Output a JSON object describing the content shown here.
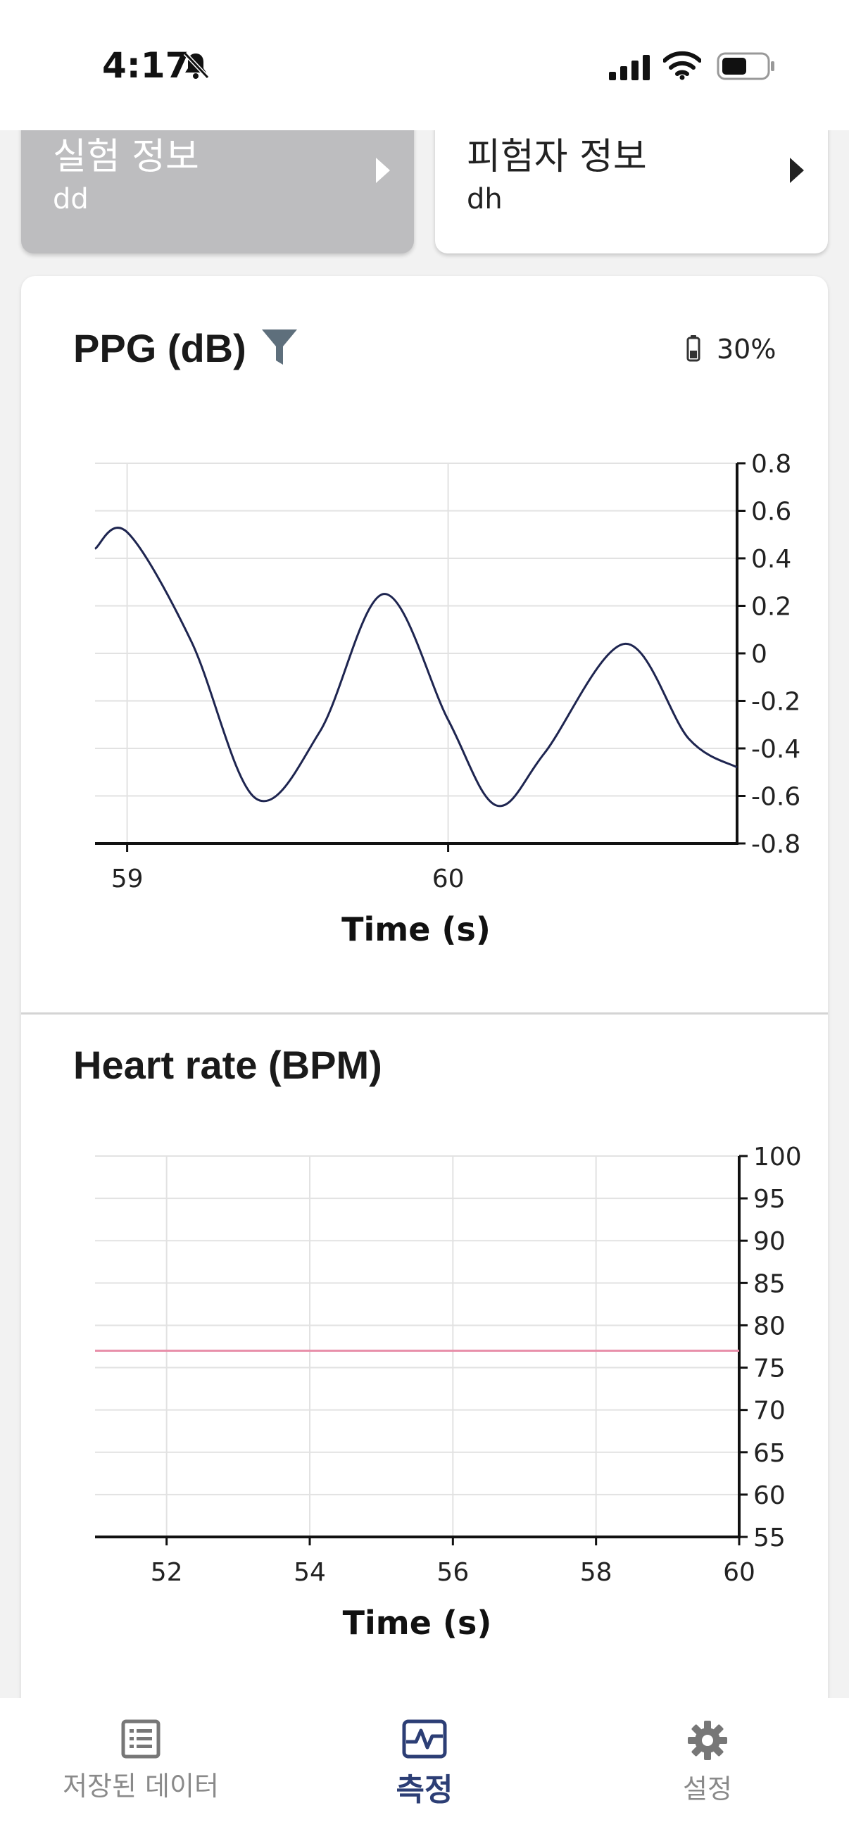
{
  "status_bar": {
    "time": "4:17"
  },
  "cards": {
    "experiment": {
      "title": "실험 정보",
      "value": "dd"
    },
    "subject": {
      "title": "피험자 정보",
      "value": "dh"
    }
  },
  "ppg": {
    "title": "PPG (dB)",
    "battery": "30%",
    "chart_data": {
      "type": "line",
      "title": "PPG (dB)",
      "xlabel": "Time (s)",
      "ylabel": "",
      "xlim": [
        58.9,
        60.9
      ],
      "ylim": [
        -0.8,
        0.8
      ],
      "x_ticks": [
        "59",
        "60"
      ],
      "x_tick_values": [
        59,
        60
      ],
      "y_ticks": [
        "0.8",
        "0.6",
        "0.4",
        "0.2",
        "0",
        "-0.2",
        "-0.4",
        "-0.6",
        "-0.8"
      ],
      "y_tick_values": [
        0.8,
        0.6,
        0.4,
        0.2,
        0,
        -0.2,
        -0.4,
        -0.6,
        -0.8
      ],
      "color": "#1e2550",
      "series": [
        {
          "x": [
            58.9,
            59.0,
            59.2,
            59.4,
            59.6,
            59.8,
            60.0,
            60.15,
            60.3,
            60.55,
            60.75,
            60.9
          ],
          "y": [
            0.44,
            0.51,
            0.05,
            -0.61,
            -0.33,
            0.25,
            -0.28,
            -0.64,
            -0.42,
            0.04,
            -0.36,
            -0.48
          ]
        }
      ]
    }
  },
  "hr": {
    "title": "Heart rate (BPM)",
    "chart_data": {
      "type": "line",
      "title": "Heart rate (BPM)",
      "xlabel": "Time (s)",
      "ylabel": "",
      "xlim": [
        51,
        60
      ],
      "ylim": [
        55,
        100
      ],
      "x_ticks": [
        "52",
        "54",
        "56",
        "58",
        "60"
      ],
      "x_tick_values": [
        52,
        54,
        56,
        58,
        60
      ],
      "y_ticks": [
        "100",
        "95",
        "90",
        "85",
        "80",
        "75",
        "70",
        "65",
        "60",
        "55"
      ],
      "y_tick_values": [
        100,
        95,
        90,
        85,
        80,
        75,
        70,
        65,
        60,
        55
      ],
      "color": "#e890aa",
      "series": [
        {
          "x": [
            51,
            60
          ],
          "y": [
            77,
            77
          ]
        }
      ]
    }
  },
  "nav": {
    "items": [
      {
        "label": "저장된 데이터",
        "icon": "list-icon"
      },
      {
        "label": "측정",
        "icon": "pulse-icon"
      },
      {
        "label": "설정",
        "icon": "gear-icon"
      }
    ]
  }
}
